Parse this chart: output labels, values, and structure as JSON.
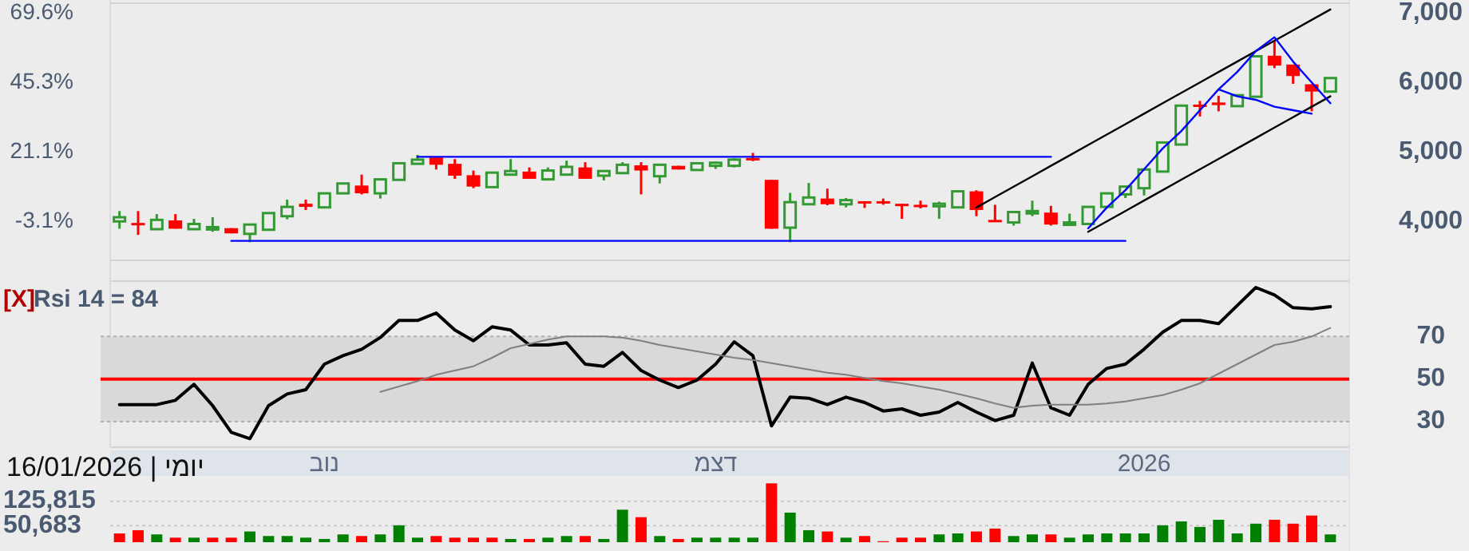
{
  "chart_data": [
    {
      "type": "candlestick",
      "tick_labels": "y",
      "categories": [
        null,
        null,
        null,
        null,
        null,
        null,
        null,
        null,
        null,
        null,
        null,
        null,
        null,
        null,
        null,
        null,
        null,
        null,
        null,
        null,
        null,
        null,
        null,
        null,
        null,
        null,
        null,
        null,
        null,
        null,
        null,
        null,
        null,
        null,
        null,
        null,
        null,
        null,
        null,
        null,
        null,
        null,
        null,
        null,
        null,
        null,
        null,
        null,
        null,
        null,
        null,
        null,
        null,
        null,
        null,
        null,
        null,
        null,
        null,
        null,
        null,
        null,
        null,
        null,
        null,
        null
      ],
      "ylim": [
        -16.7,
        73.0
      ],
      "yticks": [
        {
          "value": -3.1,
          "label": "-3.1%"
        },
        {
          "value": 21.1,
          "label": "21.1%"
        },
        {
          "value": 45.3,
          "label": "45.3%"
        },
        {
          "value": 69.6,
          "label": "69.6%"
        }
      ],
      "y2lim": [
        3440,
        7140
      ],
      "y2ticks": [
        {
          "value": 4000,
          "label": "4,000"
        },
        {
          "value": 5000,
          "label": "5,000"
        },
        {
          "value": 6000,
          "label": "6,000"
        },
        {
          "value": 7000,
          "label": "7,000"
        }
      ],
      "series": [
        {
          "type": "candlestick",
          "axis": "y2",
          "ohlc": [
            [
              4000,
              4149,
              3895,
              4060
            ],
            [
              3978,
              4149,
              3806,
              3955
            ],
            [
              3888,
              4105,
              3888,
              4022
            ],
            [
              4015,
              4105,
              3895,
              3895
            ],
            [
              3888,
              4037,
              3880,
              3963
            ],
            [
              3888,
              4060,
              3851,
              3918
            ],
            [
              3903,
              3903,
              3828,
              3828
            ],
            [
              3821,
              3955,
              3701,
              3955
            ],
            [
              3880,
              4120,
              3880,
              4120
            ],
            [
              4075,
              4314,
              4030,
              4209
            ],
            [
              4254,
              4314,
              4164,
              4209
            ],
            [
              4202,
              4404,
              4202,
              4404
            ],
            [
              4404,
              4546,
              4404,
              4546
            ],
            [
              4516,
              4673,
              4389,
              4404
            ],
            [
              4404,
              4605,
              4329,
              4605
            ],
            [
              4598,
              4837,
              4598,
              4837
            ],
            [
              4829,
              4957,
              4829,
              4889
            ],
            [
              4919,
              4919,
              4747,
              4815
            ],
            [
              4829,
              4897,
              4613,
              4658
            ],
            [
              4665,
              4732,
              4478,
              4501
            ],
            [
              4493,
              4702,
              4493,
              4702
            ],
            [
              4673,
              4897,
              4673,
              4725
            ],
            [
              4717,
              4777,
              4613,
              4613
            ],
            [
              4605,
              4777,
              4598,
              4732
            ],
            [
              4673,
              4874,
              4673,
              4785
            ],
            [
              4777,
              4852,
              4613,
              4613
            ],
            [
              4658,
              4725,
              4590,
              4725
            ],
            [
              4695,
              4852,
              4695,
              4815
            ],
            [
              4807,
              4852,
              4389,
              4732
            ],
            [
              4650,
              4815,
              4546,
              4815
            ],
            [
              4800,
              4800,
              4747,
              4747
            ],
            [
              4740,
              4837,
              4740,
              4837
            ],
            [
              4800,
              4859,
              4755,
              4844
            ],
            [
              4800,
              4912,
              4777,
              4889
            ],
            [
              4912,
              4986,
              4867,
              4889
            ],
            [
              4598,
              4598,
              3895,
              3895
            ],
            [
              3910,
              4411,
              3701,
              4277
            ],
            [
              4247,
              4553,
              4247,
              4344
            ],
            [
              4329,
              4471,
              4232,
              4247
            ],
            [
              4247,
              4336,
              4202,
              4306
            ],
            [
              4291,
              4291,
              4194,
              4262
            ],
            [
              4291,
              4329,
              4239,
              4262
            ],
            [
              4254,
              4254,
              4037,
              4224
            ],
            [
              4239,
              4299,
              4187,
              4209
            ],
            [
              4217,
              4284,
              4037,
              4254
            ],
            [
              4202,
              4433,
              4202,
              4433
            ],
            [
              4433,
              4448,
              4075,
              4164
            ],
            [
              4022,
              4239,
              4000,
              4000
            ],
            [
              3985,
              4135,
              3940,
              4135
            ],
            [
              4120,
              4299,
              4075,
              4149
            ],
            [
              4127,
              4224,
              3940,
              3955
            ],
            [
              3955,
              4112,
              3955,
              3985
            ],
            [
              3963,
              4209,
              3963,
              4209
            ],
            [
              4209,
              4404,
              4209,
              4404
            ],
            [
              4389,
              4501,
              4336,
              4501
            ],
            [
              4478,
              4747,
              4374,
              4747
            ],
            [
              4717,
              5136,
              4717,
              5136
            ],
            [
              5106,
              5666,
              5106,
              5666
            ],
            [
              5681,
              5734,
              5510,
              5659
            ],
            [
              5711,
              5808,
              5584,
              5674
            ],
            [
              5659,
              5816,
              5659,
              5816
            ],
            [
              5794,
              6376,
              5794,
              6376
            ],
            [
              6384,
              6601,
              6205,
              6242
            ],
            [
              6257,
              6257,
              5980,
              6092
            ],
            [
              5973,
              5973,
              5584,
              5868
            ],
            [
              5868,
              6063,
              5868,
              6063
            ]
          ],
          "colors": [
            "#339933",
            "#ff0000",
            "#339933",
            "#ff0000",
            "#339933",
            "#339933",
            "#ff0000",
            "#339933",
            "#339933",
            "#339933",
            "#ff0000",
            "#339933",
            "#339933",
            "#ff0000",
            "#339933",
            "#339933",
            "#339933",
            "#ff0000",
            "#ff0000",
            "#ff0000",
            "#339933",
            "#339933",
            "#ff0000",
            "#339933",
            "#339933",
            "#ff0000",
            "#339933",
            "#339933",
            "#ff0000",
            "#339933",
            "#ff0000",
            "#339933",
            "#339933",
            "#339933",
            "#ff0000",
            "#ff0000",
            "#339933",
            "#339933",
            "#ff0000",
            "#339933",
            "#ff0000",
            "#ff0000",
            "#ff0000",
            "#ff0000",
            "#339933",
            "#339933",
            "#ff0000",
            "#ff0000",
            "#339933",
            "#339933",
            "#ff0000",
            "#339933",
            "#339933",
            "#339933",
            "#339933",
            "#339933",
            "#339933",
            "#339933",
            "#ff0000",
            "#ff0000",
            "#339933",
            "#339933",
            "#ff0000",
            "#ff0000",
            "#ff0000",
            "#339933"
          ]
        },
        {
          "type": "line",
          "axis": "y2",
          "color": "#0000ff",
          "values": [
            null,
            null,
            null,
            null,
            null,
            null,
            null,
            null,
            null,
            null,
            null,
            null,
            null,
            null,
            null,
            null,
            4930,
            4930,
            4930,
            4930,
            4930,
            4930,
            4930,
            4930,
            4930,
            4930,
            4930,
            4930,
            4930,
            4930,
            4930,
            4930,
            4930,
            4930,
            4930,
            4930,
            4930,
            4930,
            4930,
            4930,
            4930,
            4930,
            4930,
            4930,
            4930,
            4930,
            4930,
            4930,
            4930,
            4930,
            4930,
            null,
            null,
            null,
            null,
            null,
            null,
            null,
            null,
            null,
            null,
            null,
            null,
            null,
            null,
            null
          ]
        },
        {
          "type": "line",
          "axis": "y2",
          "color": "#0000ff",
          "values": [
            null,
            null,
            null,
            null,
            null,
            null,
            3720,
            3720,
            3720,
            3720,
            3720,
            3720,
            3720,
            3720,
            3720,
            3720,
            3720,
            3720,
            3720,
            3720,
            3720,
            3720,
            3720,
            3720,
            3720,
            3720,
            3720,
            3720,
            3720,
            3720,
            3720,
            3720,
            3720,
            3720,
            3720,
            3720,
            3720,
            3720,
            3720,
            3720,
            3720,
            3720,
            3720,
            3720,
            3720,
            3720,
            3720,
            3720,
            3720,
            3720,
            3720,
            3720,
            3720,
            3720,
            3720,
            null,
            null,
            null,
            null,
            null,
            null,
            null,
            null,
            null,
            null,
            null
          ]
        },
        {
          "type": "line",
          "axis": "y2",
          "color": "#000000",
          "values": [
            null,
            null,
            null,
            null,
            null,
            null,
            null,
            null,
            null,
            null,
            null,
            null,
            null,
            null,
            null,
            null,
            null,
            null,
            null,
            null,
            null,
            null,
            null,
            null,
            null,
            null,
            null,
            null,
            null,
            null,
            null,
            null,
            null,
            null,
            null,
            null,
            null,
            null,
            null,
            null,
            null,
            null,
            null,
            null,
            null,
            null,
            4200,
            4350,
            4500,
            4650,
            4800,
            4950,
            5100,
            5250,
            5400,
            5550,
            5700,
            5850,
            6000,
            6150,
            6300,
            6450,
            6600,
            6750,
            6900,
            7050
          ]
        },
        {
          "type": "line",
          "axis": "y2",
          "color": "#000000",
          "values": [
            null,
            null,
            null,
            null,
            null,
            null,
            null,
            null,
            null,
            null,
            null,
            null,
            null,
            null,
            null,
            null,
            null,
            null,
            null,
            null,
            null,
            null,
            null,
            null,
            null,
            null,
            null,
            null,
            null,
            null,
            null,
            null,
            null,
            null,
            null,
            null,
            null,
            null,
            null,
            null,
            null,
            null,
            null,
            null,
            null,
            null,
            null,
            null,
            null,
            null,
            null,
            null,
            3850,
            4000,
            4150,
            4300,
            4450,
            4600,
            4750,
            4900,
            5050,
            5200,
            5350,
            5500,
            5650,
            5800
          ]
        },
        {
          "type": "line",
          "axis": "y2",
          "color": "#0000ff",
          "values": [
            null,
            null,
            null,
            null,
            null,
            null,
            null,
            null,
            null,
            null,
            null,
            null,
            null,
            null,
            null,
            null,
            null,
            null,
            null,
            null,
            null,
            null,
            null,
            null,
            null,
            null,
            null,
            null,
            null,
            null,
            null,
            null,
            null,
            null,
            null,
            null,
            null,
            null,
            null,
            null,
            null,
            null,
            null,
            null,
            null,
            null,
            null,
            null,
            null,
            null,
            null,
            null,
            3900,
            4200,
            4450,
            4750,
            5050,
            5300,
            5600,
            5900,
            6150,
            6450,
            6650,
            6300,
            6000,
            5700
          ]
        },
        {
          "type": "line",
          "axis": "y2",
          "color": "#0000ff",
          "values": [
            null,
            null,
            null,
            null,
            null,
            null,
            null,
            null,
            null,
            null,
            null,
            null,
            null,
            null,
            null,
            null,
            null,
            null,
            null,
            null,
            null,
            null,
            null,
            null,
            null,
            null,
            null,
            null,
            null,
            null,
            null,
            null,
            null,
            null,
            null,
            null,
            null,
            null,
            null,
            null,
            null,
            null,
            null,
            null,
            null,
            null,
            null,
            null,
            null,
            null,
            null,
            null,
            null,
            null,
            null,
            null,
            null,
            null,
            null,
            5900,
            5800,
            5750,
            5650,
            5600,
            5550,
            null
          ]
        }
      ]
    },
    {
      "type": "line",
      "title": "Rsi 14 = 84",
      "annotations": [
        "[X]"
      ],
      "categories": [
        null,
        null,
        null,
        null,
        null,
        null,
        null,
        null,
        null,
        null,
        null,
        "נוב",
        null,
        null,
        null,
        null,
        null,
        null,
        null,
        null,
        null,
        null,
        null,
        null,
        null,
        null,
        null,
        null,
        null,
        null,
        null,
        null,
        "דצמ",
        null,
        null,
        null,
        null,
        null,
        null,
        null,
        null,
        null,
        null,
        null,
        null,
        null,
        null,
        null,
        null,
        null,
        null,
        null,
        null,
        null,
        null,
        "2026",
        null,
        null,
        null,
        null,
        null,
        null,
        null,
        null,
        null,
        null
      ],
      "ylim": [
        18,
        96
      ],
      "yticks": [
        30,
        50,
        70
      ],
      "bands": [
        {
          "axis": "y",
          "from": 30,
          "to": 70,
          "color": "#d9d9d9"
        }
      ],
      "ref_lines": [
        {
          "axis": "y",
          "value": 50,
          "color": "#ff0000"
        }
      ],
      "series": [
        {
          "color": "#000000",
          "values": [
            38,
            38,
            38,
            40,
            47.5,
            37.5,
            25,
            22,
            37.5,
            43,
            45,
            57,
            61,
            64,
            69.5,
            77.5,
            77.5,
            81,
            73,
            68,
            74.5,
            73,
            66,
            66,
            67,
            57,
            56,
            62.5,
            54,
            49.5,
            46,
            49.5,
            57,
            67.5,
            61,
            28,
            41.5,
            41,
            38,
            41.5,
            39,
            35,
            36,
            33,
            34.5,
            39,
            34.5,
            30.5,
            33,
            57.5,
            36.5,
            33,
            47.5,
            55,
            57,
            64,
            72,
            77.5,
            77.5,
            76,
            84.5,
            93,
            89.5,
            83.5,
            83,
            84
          ]
        },
        {
          "color": "#808080",
          "values": [
            null,
            null,
            null,
            null,
            null,
            null,
            null,
            null,
            null,
            null,
            null,
            null,
            null,
            null,
            44,
            46.5,
            49,
            52,
            54,
            56,
            60,
            64.5,
            66.5,
            68.5,
            70,
            70,
            70,
            69.5,
            68,
            66,
            64.5,
            63,
            61.5,
            60,
            59,
            57.5,
            56,
            54.5,
            53,
            52,
            50.5,
            49,
            48,
            46.5,
            45,
            43,
            41,
            38.5,
            36.5,
            37.5,
            38,
            38,
            38,
            38.5,
            39.5,
            41,
            42.5,
            45,
            48,
            52.5,
            57,
            61.5,
            66,
            67.5,
            70,
            74
          ]
        }
      ]
    },
    {
      "type": "bar",
      "title": "יומי | 16/01/2026",
      "tick_labels": "y",
      "grid": "y",
      "categories": [
        null,
        null,
        null,
        null,
        null,
        null,
        null,
        null,
        null,
        null,
        null,
        null,
        null,
        null,
        null,
        null,
        null,
        null,
        null,
        null,
        null,
        null,
        null,
        null,
        null,
        null,
        null,
        null,
        null,
        null,
        null,
        null,
        null,
        null,
        null,
        null,
        null,
        null,
        null,
        null,
        null,
        null,
        null,
        null,
        null,
        null,
        null,
        null,
        null,
        null,
        null,
        null,
        null,
        null,
        null,
        null,
        null,
        null,
        null,
        null,
        null,
        null,
        null,
        null,
        null,
        null
      ],
      "ylim": [
        0,
        194000
      ],
      "yticks": [
        {
          "value": 50683,
          "label": "50,683"
        },
        {
          "value": 125815,
          "label": "125,815"
        }
      ],
      "values": [
        27000,
        37000,
        24000,
        14000,
        14000,
        14000,
        14000,
        33000,
        19000,
        19000,
        14000,
        10000,
        24000,
        19000,
        24000,
        52000,
        14000,
        19000,
        14000,
        14000,
        14000,
        10000,
        10000,
        14000,
        19000,
        19000,
        10000,
        100000,
        77000,
        19000,
        10000,
        14000,
        14000,
        14000,
        14000,
        181000,
        91000,
        37000,
        33000,
        14000,
        19000,
        3000,
        14000,
        14000,
        24000,
        27000,
        33000,
        42000,
        19000,
        24000,
        24000,
        14000,
        24000,
        27000,
        27000,
        27000,
        52000,
        64000,
        47000,
        69000,
        27000,
        57000,
        69000,
        57000,
        82000,
        24000
      ],
      "colors": [
        "#ff0000",
        "#ff0000",
        "#008000",
        "#ff0000",
        "#008000",
        "#ff0000",
        "#ff0000",
        "#008000",
        "#008000",
        "#008000",
        "#008000",
        "#008000",
        "#008000",
        "#ff0000",
        "#008000",
        "#008000",
        "#008000",
        "#ff0000",
        "#ff0000",
        "#ff0000",
        "#ff0000",
        "#008000",
        "#ff0000",
        "#008000",
        "#008000",
        "#ff0000",
        "#008000",
        "#008000",
        "#ff0000",
        "#008000",
        "#ff0000",
        "#008000",
        "#008000",
        "#008000",
        "#008000",
        "#ff0000",
        "#008000",
        "#008000",
        "#ff0000",
        "#008000",
        "#ff0000",
        "#ff0000",
        "#ff0000",
        "#ff0000",
        "#008000",
        "#008000",
        "#ff0000",
        "#ff0000",
        "#008000",
        "#008000",
        "#ff0000",
        "#008000",
        "#008000",
        "#008000",
        "#008000",
        "#008000",
        "#008000",
        "#008000",
        "#008000",
        "#008000",
        "#008000",
        "#008000",
        "#ff0000",
        "#ff0000",
        "#ff0000",
        "#008000"
      ]
    }
  ]
}
